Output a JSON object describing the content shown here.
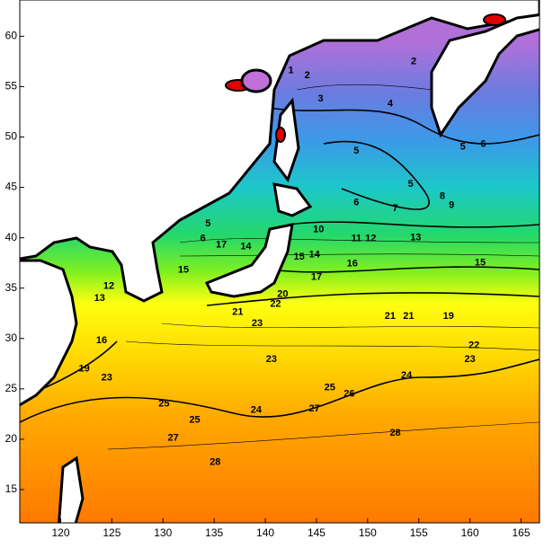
{
  "chart_data": {
    "type": "contour",
    "xlim": [
      116,
      166.8
    ],
    "ylim": [
      11.7,
      63.6
    ],
    "xticks": [
      120,
      125,
      130,
      135,
      140,
      145,
      150,
      155,
      160,
      165
    ],
    "yticks": [
      15,
      20,
      25,
      30,
      35,
      40,
      45,
      50,
      55,
      60
    ],
    "contour_labels": [
      {
        "level": 1,
        "x": 142.5,
        "y": 56.6
      },
      {
        "level": 2,
        "x": 154.5,
        "y": 57.5
      },
      {
        "level": 2,
        "x": 144.1,
        "y": 56.1
      },
      {
        "level": 3,
        "x": 145.4,
        "y": 53.8
      },
      {
        "level": 4,
        "x": 152.2,
        "y": 53.3
      },
      {
        "level": 5,
        "x": 148.9,
        "y": 48.6
      },
      {
        "level": 5,
        "x": 159.3,
        "y": 49.0
      },
      {
        "level": 6,
        "x": 161.3,
        "y": 49.3
      },
      {
        "level": 5,
        "x": 154.2,
        "y": 45.3
      },
      {
        "level": 6,
        "x": 148.9,
        "y": 43.5
      },
      {
        "level": 7,
        "x": 152.7,
        "y": 42.9
      },
      {
        "level": 8,
        "x": 157.3,
        "y": 44.1
      },
      {
        "level": 9,
        "x": 158.2,
        "y": 43.2
      },
      {
        "level": 5,
        "x": 134.4,
        "y": 41.4
      },
      {
        "level": 6,
        "x": 133.9,
        "y": 39.9
      },
      {
        "level": 10,
        "x": 145.2,
        "y": 40.8
      },
      {
        "level": 11,
        "x": 148.9,
        "y": 39.9
      },
      {
        "level": 12,
        "x": 150.3,
        "y": 39.9
      },
      {
        "level": 13,
        "x": 154.7,
        "y": 40.0
      },
      {
        "level": 14,
        "x": 144.8,
        "y": 38.3
      },
      {
        "level": 15,
        "x": 143.3,
        "y": 38.1
      },
      {
        "level": 16,
        "x": 148.5,
        "y": 37.4
      },
      {
        "level": 15,
        "x": 161.0,
        "y": 37.5
      },
      {
        "level": 17,
        "x": 135.7,
        "y": 39.3
      },
      {
        "level": 14,
        "x": 138.1,
        "y": 39.1
      },
      {
        "level": 15,
        "x": 132.0,
        "y": 36.8
      },
      {
        "level": 17,
        "x": 145.0,
        "y": 36.1
      },
      {
        "level": 12,
        "x": 124.7,
        "y": 35.2
      },
      {
        "level": 13,
        "x": 123.8,
        "y": 34.0
      },
      {
        "level": 16,
        "x": 124.0,
        "y": 29.8
      },
      {
        "level": 20,
        "x": 141.7,
        "y": 34.4
      },
      {
        "level": 22,
        "x": 141.0,
        "y": 33.4
      },
      {
        "level": 21,
        "x": 137.3,
        "y": 32.6
      },
      {
        "level": 23,
        "x": 139.2,
        "y": 31.5
      },
      {
        "level": 21,
        "x": 152.2,
        "y": 32.2
      },
      {
        "level": 21,
        "x": 154.0,
        "y": 32.2
      },
      {
        "level": 19,
        "x": 157.9,
        "y": 32.2
      },
      {
        "level": 22,
        "x": 160.4,
        "y": 29.3
      },
      {
        "level": 23,
        "x": 160.0,
        "y": 27.9
      },
      {
        "level": 23,
        "x": 140.6,
        "y": 27.9
      },
      {
        "level": 24,
        "x": 153.8,
        "y": 26.3
      },
      {
        "level": 25,
        "x": 146.3,
        "y": 25.1
      },
      {
        "level": 26,
        "x": 148.2,
        "y": 24.5
      },
      {
        "level": 27,
        "x": 144.8,
        "y": 23.0
      },
      {
        "level": 24,
        "x": 139.1,
        "y": 22.9
      },
      {
        "level": 25,
        "x": 130.1,
        "y": 23.5
      },
      {
        "level": 25,
        "x": 133.1,
        "y": 21.9
      },
      {
        "level": 27,
        "x": 131.0,
        "y": 20.1
      },
      {
        "level": 28,
        "x": 152.7,
        "y": 20.6
      },
      {
        "level": 28,
        "x": 135.1,
        "y": 17.7
      },
      {
        "level": 19,
        "x": 122.3,
        "y": 27.0
      },
      {
        "level": 23,
        "x": 124.5,
        "y": 26.1
      }
    ]
  }
}
